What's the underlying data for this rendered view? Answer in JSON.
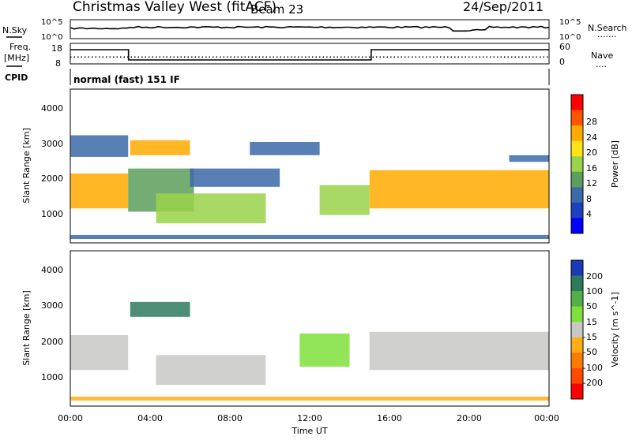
{
  "header": {
    "station": "Christmas Valley West (fitACF)",
    "beam": "Beam 23",
    "date": "24/Sep/2011"
  },
  "noise_panel": {
    "left_label": "N.Sky",
    "left_ticks": [
      "10^5",
      "10^0"
    ],
    "right_ticks": [
      "10^5",
      "10^0"
    ],
    "right_label": "N.Search",
    "right_legend": "......."
  },
  "freq_panel": {
    "left_label_1": "Freq.",
    "left_label_2": "[MHz]",
    "left_ticks": [
      "18",
      "8"
    ],
    "right_ticks": [
      "60",
      "0"
    ],
    "right_label": "Nave",
    "right_legend": "....",
    "freq_steps": [
      {
        "from": "00:00",
        "to": "02:55",
        "level": 16.0
      },
      {
        "from": "02:55",
        "to": "15:05",
        "level": 9.5
      },
      {
        "from": "15:05",
        "to": "24:00",
        "level": 16.0
      }
    ],
    "nave_level": 20
  },
  "cpid": {
    "label": "CPID",
    "mode": "normal (fast) 151 IF"
  },
  "axes": {
    "ylabel": "Slant Range [km]",
    "y_ticks": [
      "1000",
      "2000",
      "3000",
      "4000"
    ],
    "x_ticks": [
      "00:00",
      "04:00",
      "08:00",
      "12:00",
      "16:00",
      "20:00",
      "00:00"
    ],
    "xlabel": "Time UT"
  },
  "power_scale": {
    "title": "Power [dB]",
    "ticks": [
      "28",
      "24",
      "20",
      "16",
      "12",
      "8",
      "4"
    ],
    "colors": [
      "#ff0000",
      "#ff5500",
      "#ffaa00",
      "#ffe31a",
      "#9ad24a",
      "#5c9f5c",
      "#3c6aa8",
      "#1e3fbe",
      "#0000ff"
    ]
  },
  "velocity_scale": {
    "title": "Velocity [m s^-1]",
    "ticks": [
      "200",
      "100",
      "50",
      "15",
      "-15",
      "-50",
      "-100",
      "-200"
    ],
    "colors": [
      "#1a3ab8",
      "#2e7a5c",
      "#52b047",
      "#7fe03a",
      "#c8c8c4",
      "#ffae1a",
      "#ff7a00",
      "#ff4a00",
      "#ff0000"
    ]
  },
  "chart_data": {
    "type": "heatmap",
    "time_range_hours": [
      0,
      24
    ],
    "range_km": [
      180,
      4500
    ],
    "power_regions": [
      {
        "t0": 0.0,
        "t1": 2.9,
        "r0": 1100,
        "r1": 2150,
        "level": 0.8
      },
      {
        "t0": 0.0,
        "t1": 2.9,
        "r0": 2650,
        "r1": 3300,
        "level": 0.3
      },
      {
        "t0": 2.9,
        "t1": 6.2,
        "r0": 1000,
        "r1": 2300,
        "level": 0.35
      },
      {
        "t0": 3.0,
        "t1": 6.0,
        "r0": 2700,
        "r1": 3150,
        "level": 0.75
      },
      {
        "t0": 4.3,
        "t1": 9.8,
        "r0": 650,
        "r1": 1550,
        "level": 0.55
      },
      {
        "t0": 6.0,
        "t1": 10.5,
        "r0": 1750,
        "r1": 2300,
        "level": 0.2
      },
      {
        "t0": 9.0,
        "t1": 12.5,
        "r0": 2700,
        "r1": 3100,
        "level": 0.25
      },
      {
        "t0": 12.5,
        "t1": 15.0,
        "r0": 900,
        "r1": 1800,
        "level": 0.45
      },
      {
        "t0": 15.0,
        "t1": 24.0,
        "r0": 1100,
        "r1": 2250,
        "level": 0.75
      },
      {
        "t0": 22.0,
        "t1": 24.0,
        "r0": 2500,
        "r1": 2700,
        "level": 0.2
      },
      {
        "t0": 0.0,
        "t1": 24.0,
        "r0": 180,
        "r1": 300,
        "level": 0.25
      }
    ],
    "velocity_regions": [
      {
        "t0": 0.0,
        "t1": 2.9,
        "r0": 1100,
        "r1": 2150,
        "vel": 0
      },
      {
        "t0": 3.0,
        "t1": 6.0,
        "r0": 2700,
        "r1": 3150,
        "vel": 150
      },
      {
        "t0": 4.3,
        "t1": 9.8,
        "r0": 650,
        "r1": 1550,
        "vel": 10
      },
      {
        "t0": 11.5,
        "t1": 14.0,
        "r0": 1200,
        "r1": 2200,
        "vel": 30
      },
      {
        "t0": 15.0,
        "t1": 24.0,
        "r0": 1100,
        "r1": 2250,
        "vel": 0
      },
      {
        "t0": 0.0,
        "t1": 24.0,
        "r0": 180,
        "r1": 300,
        "vel": -50
      }
    ]
  }
}
